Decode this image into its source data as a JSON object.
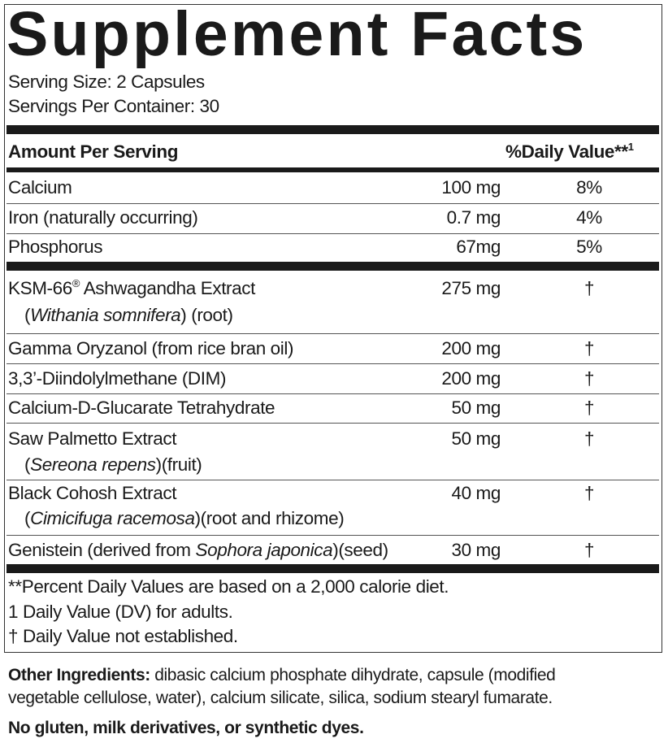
{
  "title": "Supplement Facts",
  "serving_size": "Serving Size: 2 Capsules",
  "servings_per_container": "Servings Per Container: 30",
  "header": {
    "amount_per_serving": "Amount Per Serving",
    "daily_value": "%Daily Value**",
    "daily_value_sup": "1"
  },
  "nutrients": [
    {
      "name": "Calcium",
      "amount": "100 mg",
      "dv": "8%"
    },
    {
      "name": "Iron (naturally occurring)",
      "amount": "0.7 mg",
      "dv": "4%"
    },
    {
      "name": "Phosphorus",
      "amount": "67mg",
      "dv": "5%"
    }
  ],
  "ingredients": [
    {
      "name": "KSM-66",
      "reg": "®",
      "name_rest": " Ashwagandha Extract",
      "sub_latin": "Withania somnifera",
      "sub_rest": ") (root)",
      "amount": "275 mg",
      "dv": "†"
    },
    {
      "name": "Gamma Oryzanol (from rice bran oil)",
      "amount": "200 mg",
      "dv": "†"
    },
    {
      "name": "3,3’-Diindolylmethane (DIM)",
      "amount": "200 mg",
      "dv": "†"
    },
    {
      "name": "Calcium-D-Glucarate Tetrahydrate",
      "amount": "50 mg",
      "dv": "†"
    },
    {
      "name": "Saw Palmetto Extract",
      "sub_latin": "Sereona repens",
      "sub_rest": ")(fruit)",
      "amount": "50 mg",
      "dv": "†"
    },
    {
      "name": "Black Cohosh Extract",
      "sub_latin": "Cimicifuga racemosa",
      "sub_rest": ")(root and rhizome)",
      "amount": "40 mg",
      "dv": "†"
    },
    {
      "name": "Genistein (derived from ",
      "latin": "Sophora japonica",
      "name_rest": ")(seed)",
      "amount": "30 mg",
      "dv": "†"
    }
  ],
  "footnotes": [
    "**Percent Daily Values are based on a 2,000 calorie diet.",
    "1 Daily Value (DV) for adults.",
    "† Daily Value not established."
  ],
  "other_ingredients": {
    "label": "Other Ingredients:",
    "line1": " dibasic calcium phosphate dihydrate, capsule (modified",
    "line2": "vegetable cellulose, water), calcium silicate, silica, sodium stearyl fumarate."
  },
  "allergen_statement": "No gluten, milk derivatives, or synthetic dyes."
}
